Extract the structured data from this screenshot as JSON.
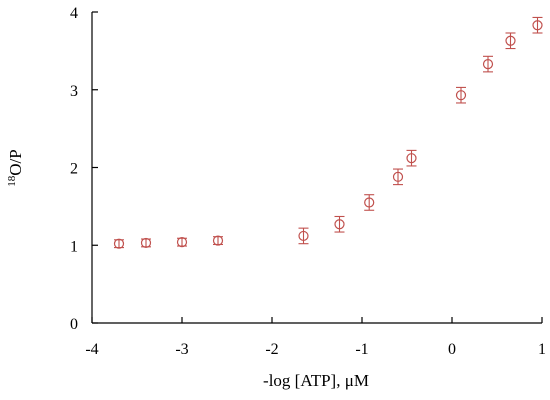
{
  "chart_data": {
    "type": "scatter",
    "xlabel": "-log [ATP], μM",
    "ylabel_sup": "18",
    "ylabel_main": "O/P",
    "xlim": [
      -4,
      1
    ],
    "ylim": [
      0,
      4
    ],
    "xticks": [
      -4,
      -3,
      -2,
      -1,
      0,
      1
    ],
    "yticks": [
      0,
      1,
      2,
      3,
      4
    ],
    "grid": false,
    "marker": "open-circle",
    "color": "#c0504d",
    "series": [
      {
        "points": [
          {
            "x": -3.7,
            "y": 1.02,
            "err": 0.05
          },
          {
            "x": -3.4,
            "y": 1.03,
            "err": 0.05
          },
          {
            "x": -3.0,
            "y": 1.04,
            "err": 0.05
          },
          {
            "x": -2.6,
            "y": 1.06,
            "err": 0.05
          },
          {
            "x": -1.65,
            "y": 1.12,
            "err": 0.1
          },
          {
            "x": -1.25,
            "y": 1.27,
            "err": 0.1
          },
          {
            "x": -0.92,
            "y": 1.55,
            "err": 0.1
          },
          {
            "x": -0.6,
            "y": 1.88,
            "err": 0.1
          },
          {
            "x": -0.45,
            "y": 2.12,
            "err": 0.1
          },
          {
            "x": 0.1,
            "y": 2.93,
            "err": 0.1
          },
          {
            "x": 0.4,
            "y": 3.33,
            "err": 0.1
          },
          {
            "x": 0.65,
            "y": 3.63,
            "err": 0.1
          },
          {
            "x": 0.95,
            "y": 3.83,
            "err": 0.1
          }
        ]
      }
    ]
  }
}
